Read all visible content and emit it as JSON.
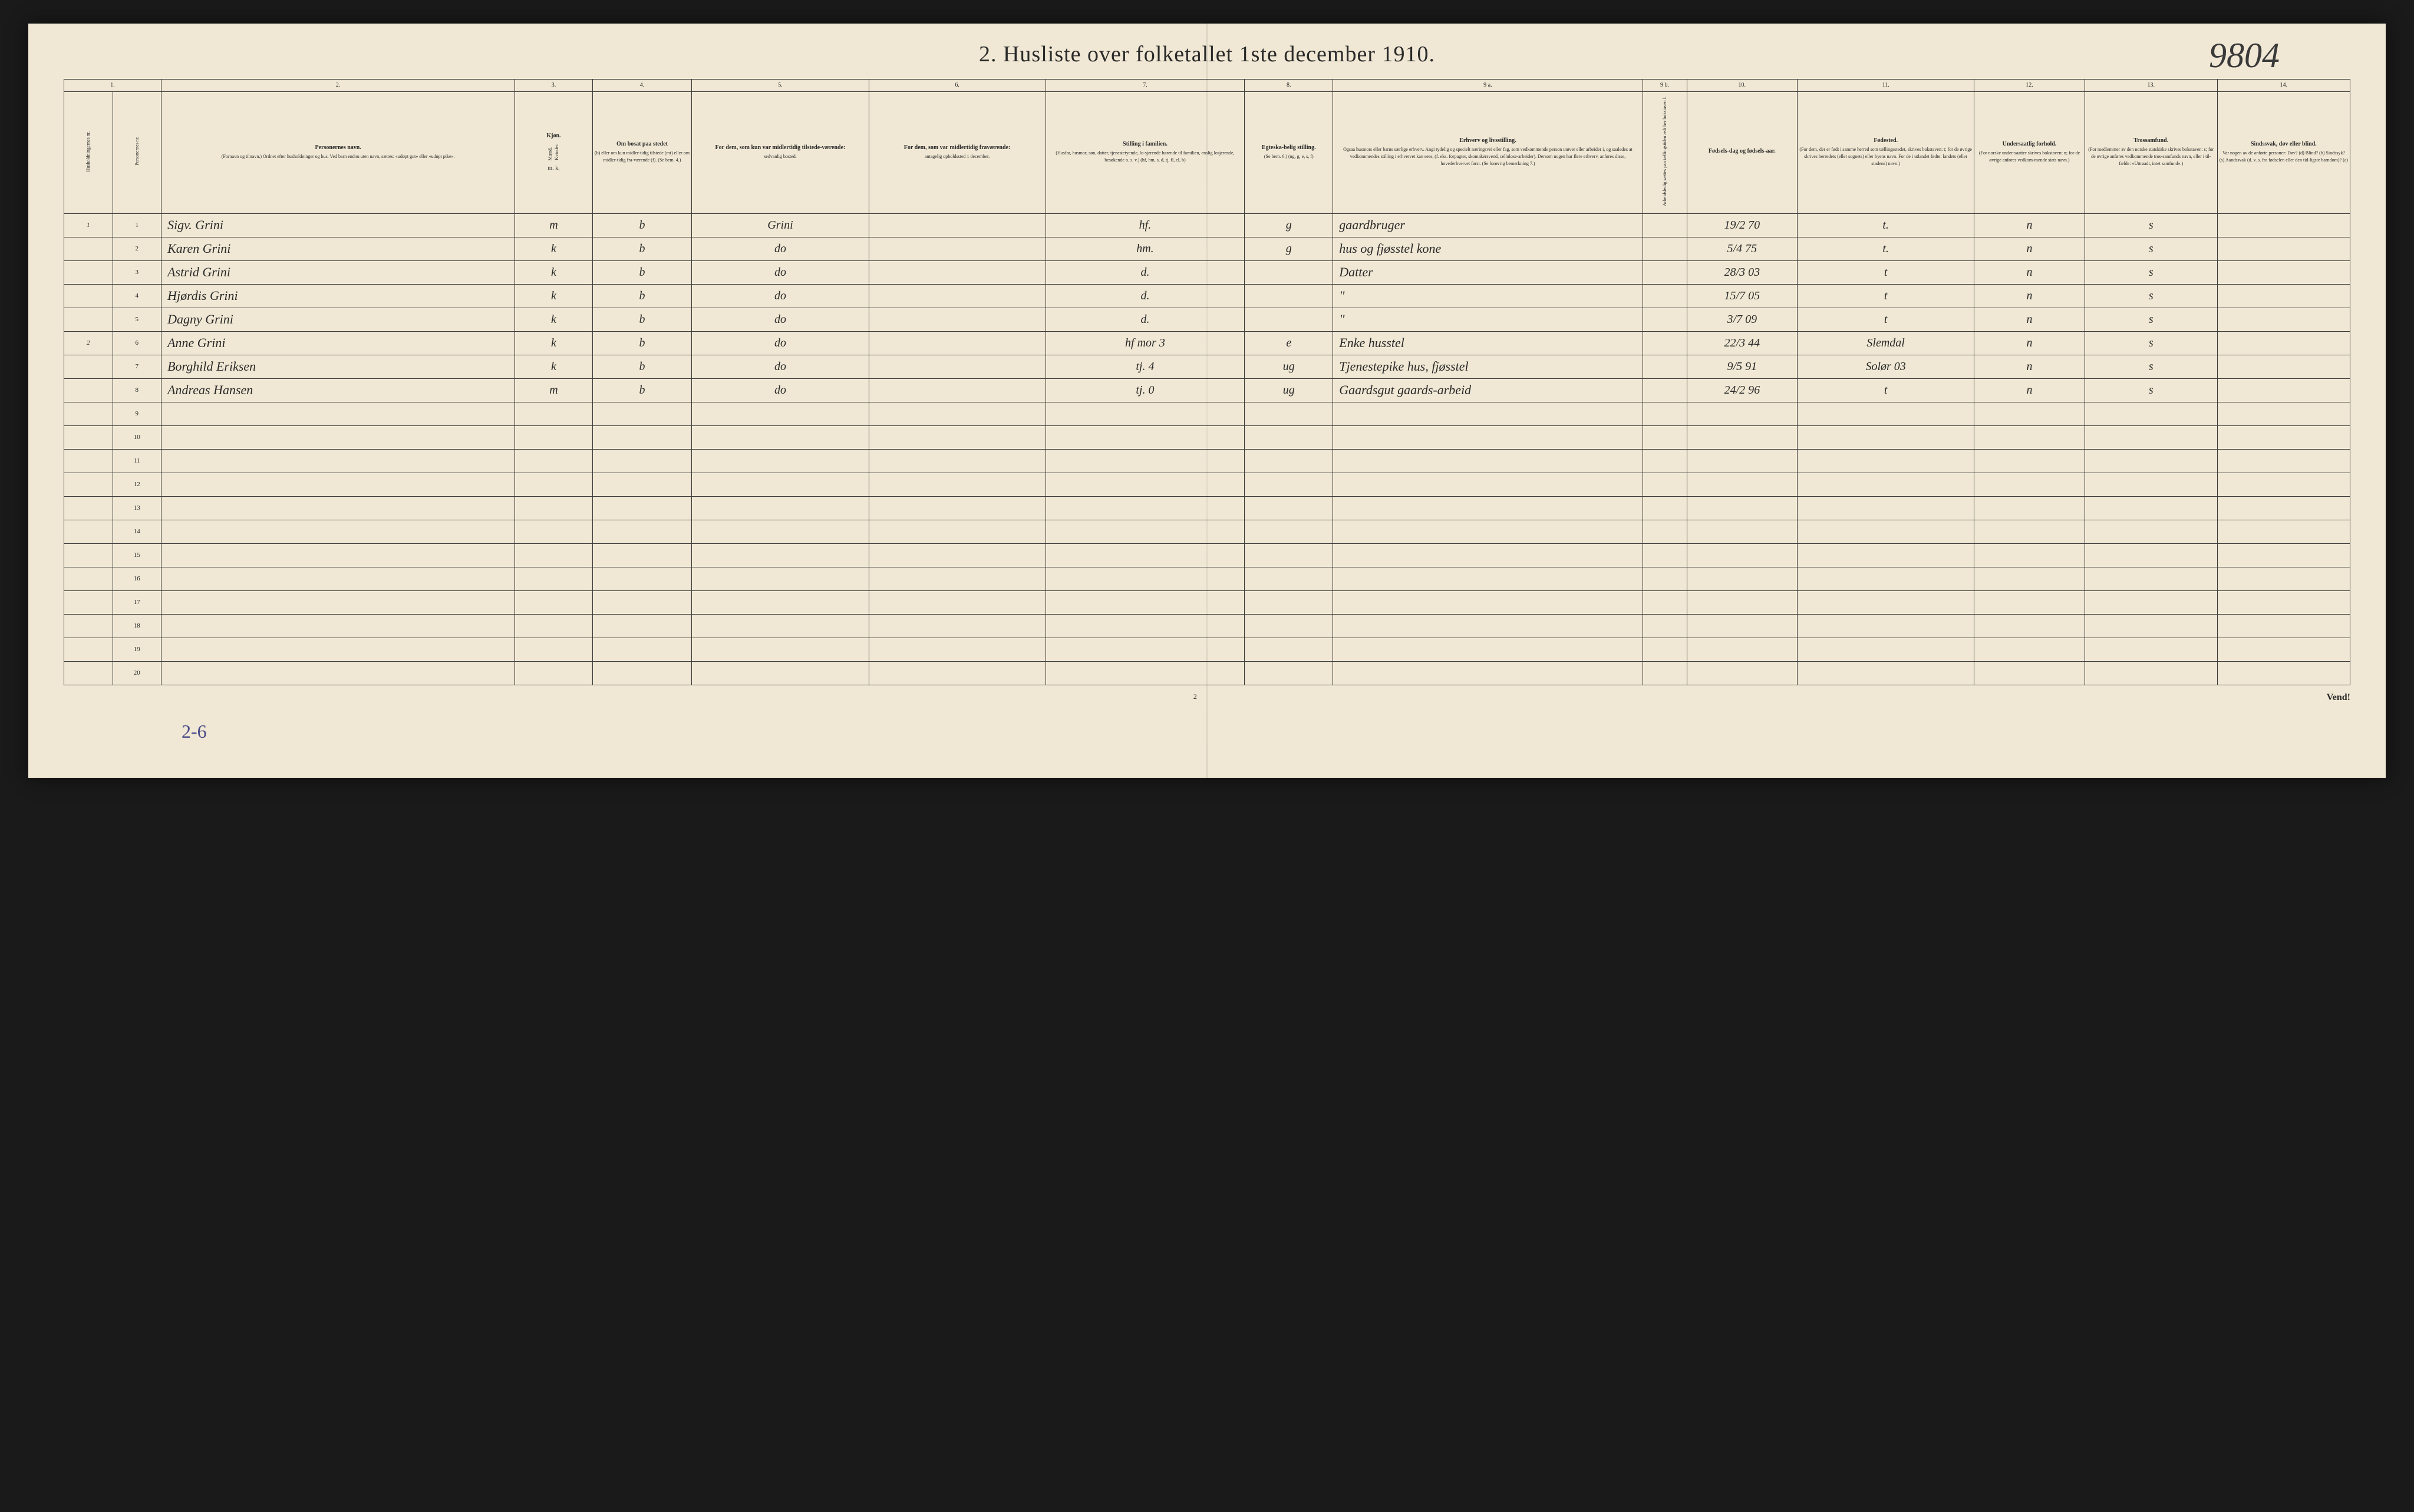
{
  "title": "2.  Husliste over folketallet 1ste december 1910.",
  "top_annotation": "9804",
  "page_number_bottom": "2",
  "footer_right": "Vend!",
  "bottom_annotation": "2-6",
  "column_numbers": [
    "1.",
    "",
    "2.",
    "3.",
    "4.",
    "5.",
    "6.",
    "7.",
    "8.",
    "9 a.",
    "9 b.",
    "10.",
    "11.",
    "12.",
    "13.",
    "14."
  ],
  "headers": {
    "c1": "Husholdningernes nr.",
    "c1b": "Personernes nr.",
    "c2_title": "Personernes navn.",
    "c2_desc": "(Fornavn og tilnavn.)\nOrdnet efter husholdninger og hus.\nVed barn endnu uten navn, sættes: «udøpt gut» eller «udøpt pike».",
    "c3_title": "Kjøn.",
    "c3_m": "Mænd.",
    "c3_k": "Kvinder.",
    "c3_mk": "m.  k.",
    "c4_title": "Om bosat paa stedet",
    "c4_desc": "(b) eller om kun midler-tidig tilstede (mt) eller om midler-tidig fra-værende (f). (Se bem. 4.)",
    "c5_title": "For dem, som kun var midlertidig tilstede-værende:",
    "c5_desc": "sedvanlig bosted.",
    "c6_title": "For dem, som var midlertidig fraværende:",
    "c6_desc": "antagelig opholdssted 1 december.",
    "c7_title": "Stilling i familien.",
    "c7_desc": "(Husfar, husmor, søn, datter, tjenestetyende, lo-sjerende hørende til familien, enslig losjerende, besøkende o. s. v.)\n(hf, hm, s, d, tj, fl, el, b)",
    "c8_title": "Egteska-belig stilling.",
    "c8_desc": "(Se bem. 6.)\n(ug, g, e, s, f)",
    "c9a_title": "Erhverv og livsstilling.",
    "c9a_desc": "Ogsaa husmors eller barns særlige erhverv. Angi tydelig og specielt næringsvei eller fag, som vedkommende person utøver eller arbeider i, og saaledes at vedkommendes stilling i erhvervet kan sees, (f. eks. forpagter, skomakersvend, cellulose-arbeider). Dersom nogen har flere erhverv, anføres disse, hovederhvervet først.\n(Se forøvrig bemerkning 7.)",
    "c9b": "Arbeidsledig sættes paa tællingstiden ædt her bokstaven l.",
    "c10_title": "Fødsels-dag og fødsels-aar.",
    "c11_title": "Fødested.",
    "c11_desc": "(For dem, der er født i samme herred som tællingsstedet, skrives bokstaven: t; for de øvrige skrives herredets (eller sognets) eller byens navn. For de i utlandet fødte: landets (eller stadens) navn.)",
    "c12_title": "Undersaatlig forhold.",
    "c12_desc": "(For norske under-saatter skrives bokstaven: n; for de øvrige anføres vedkom-mende stats navn.)",
    "c13_title": "Trossamfund.",
    "c13_desc": "(For medlemmer av den norske statskirke skrives bokstaven: s; for de øvrige anføres vedkommende tros-samfunds navn, eller i til-fælde: «Uttraadt, intet samfund».)",
    "c14_title": "Sindssvak, døv eller blind.",
    "c14_desc": "Var nogen av de anførte personer:\nDøv?        (d)\nBlind?      (b)\nSindssyk?  (s)\nAandssvak (d. v. s. fra fødselen eller den tid-ligste barndom)? (a)"
  },
  "rows": [
    {
      "hh": "1",
      "n": "1",
      "name": "Sigv. Grini",
      "mk": "m",
      "b": "b",
      "sed": "Grini",
      "opd": "",
      "fam": "hf.",
      "egt": "g",
      "erhv": "gaardbruger",
      "fod": "19/2 70",
      "fst": "t.",
      "und": "n",
      "tro": "s",
      "sind": ""
    },
    {
      "hh": "",
      "n": "2",
      "name": "Karen Grini",
      "mk": "k",
      "b": "b",
      "sed": "do",
      "opd": "",
      "fam": "hm.",
      "egt": "g",
      "erhv": "hus og fjøsstel kone",
      "fod": "5/4 75",
      "fst": "t.",
      "und": "n",
      "tro": "s",
      "sind": ""
    },
    {
      "hh": "",
      "n": "3",
      "name": "Astrid Grini",
      "mk": "k",
      "b": "b",
      "sed": "do",
      "opd": "",
      "fam": "d.",
      "egt": "",
      "erhv": "Datter",
      "fod": "28/3 03",
      "fst": "t",
      "und": "n",
      "tro": "s",
      "sind": ""
    },
    {
      "hh": "",
      "n": "4",
      "name": "Hjørdis Grini",
      "mk": "k",
      "b": "b",
      "sed": "do",
      "opd": "",
      "fam": "d.",
      "egt": "",
      "erhv": "\"",
      "fod": "15/7 05",
      "fst": "t",
      "und": "n",
      "tro": "s",
      "sind": ""
    },
    {
      "hh": "",
      "n": "5",
      "name": "Dagny Grini",
      "mk": "k",
      "b": "b",
      "sed": "do",
      "opd": "",
      "fam": "d.",
      "egt": "",
      "erhv": "\"",
      "fod": "3/7 09",
      "fst": "t",
      "und": "n",
      "tro": "s",
      "sind": ""
    },
    {
      "hh": "2",
      "n": "6",
      "name": "Anne Grini",
      "mk": "k",
      "b": "b",
      "sed": "do",
      "opd": "",
      "fam": "hf mor 3",
      "egt": "e",
      "erhv": "Enke husstel",
      "fod": "22/3 44",
      "fst": "Slemdal",
      "und": "n",
      "tro": "s",
      "sind": ""
    },
    {
      "hh": "",
      "n": "7",
      "name": "Borghild Eriksen",
      "mk": "k",
      "b": "b",
      "sed": "do",
      "opd": "",
      "fam": "tj. 4",
      "egt": "ug",
      "erhv": "Tjenestepike hus, fjøsstel",
      "fod": "9/5 91",
      "fst": "Solør 03",
      "und": "n",
      "tro": "s",
      "sind": ""
    },
    {
      "hh": "",
      "n": "8",
      "name": "Andreas Hansen",
      "mk": "m",
      "b": "b",
      "sed": "do",
      "opd": "",
      "fam": "tj. 0",
      "egt": "ug",
      "erhv": "Gaardsgut gaards-arbeid",
      "fod": "24/2 96",
      "fst": "t",
      "und": "n",
      "tro": "s",
      "sind": ""
    },
    {
      "hh": "",
      "n": "9",
      "name": "",
      "mk": "",
      "b": "",
      "sed": "",
      "opd": "",
      "fam": "",
      "egt": "",
      "erhv": "",
      "fod": "",
      "fst": "",
      "und": "",
      "tro": "",
      "sind": ""
    },
    {
      "hh": "",
      "n": "10",
      "name": "",
      "mk": "",
      "b": "",
      "sed": "",
      "opd": "",
      "fam": "",
      "egt": "",
      "erhv": "",
      "fod": "",
      "fst": "",
      "und": "",
      "tro": "",
      "sind": ""
    },
    {
      "hh": "",
      "n": "11",
      "name": "",
      "mk": "",
      "b": "",
      "sed": "",
      "opd": "",
      "fam": "",
      "egt": "",
      "erhv": "",
      "fod": "",
      "fst": "",
      "und": "",
      "tro": "",
      "sind": ""
    },
    {
      "hh": "",
      "n": "12",
      "name": "",
      "mk": "",
      "b": "",
      "sed": "",
      "opd": "",
      "fam": "",
      "egt": "",
      "erhv": "",
      "fod": "",
      "fst": "",
      "und": "",
      "tro": "",
      "sind": ""
    },
    {
      "hh": "",
      "n": "13",
      "name": "",
      "mk": "",
      "b": "",
      "sed": "",
      "opd": "",
      "fam": "",
      "egt": "",
      "erhv": "",
      "fod": "",
      "fst": "",
      "und": "",
      "tro": "",
      "sind": ""
    },
    {
      "hh": "",
      "n": "14",
      "name": "",
      "mk": "",
      "b": "",
      "sed": "",
      "opd": "",
      "fam": "",
      "egt": "",
      "erhv": "",
      "fod": "",
      "fst": "",
      "und": "",
      "tro": "",
      "sind": ""
    },
    {
      "hh": "",
      "n": "15",
      "name": "",
      "mk": "",
      "b": "",
      "sed": "",
      "opd": "",
      "fam": "",
      "egt": "",
      "erhv": "",
      "fod": "",
      "fst": "",
      "und": "",
      "tro": "",
      "sind": ""
    },
    {
      "hh": "",
      "n": "16",
      "name": "",
      "mk": "",
      "b": "",
      "sed": "",
      "opd": "",
      "fam": "",
      "egt": "",
      "erhv": "",
      "fod": "",
      "fst": "",
      "und": "",
      "tro": "",
      "sind": ""
    },
    {
      "hh": "",
      "n": "17",
      "name": "",
      "mk": "",
      "b": "",
      "sed": "",
      "opd": "",
      "fam": "",
      "egt": "",
      "erhv": "",
      "fod": "",
      "fst": "",
      "und": "",
      "tro": "",
      "sind": ""
    },
    {
      "hh": "",
      "n": "18",
      "name": "",
      "mk": "",
      "b": "",
      "sed": "",
      "opd": "",
      "fam": "",
      "egt": "",
      "erhv": "",
      "fod": "",
      "fst": "",
      "und": "",
      "tro": "",
      "sind": ""
    },
    {
      "hh": "",
      "n": "19",
      "name": "",
      "mk": "",
      "b": "",
      "sed": "",
      "opd": "",
      "fam": "",
      "egt": "",
      "erhv": "",
      "fod": "",
      "fst": "",
      "und": "",
      "tro": "",
      "sind": ""
    },
    {
      "hh": "",
      "n": "20",
      "name": "",
      "mk": "",
      "b": "",
      "sed": "",
      "opd": "",
      "fam": "",
      "egt": "",
      "erhv": "",
      "fod": "",
      "fst": "",
      "und": "",
      "tro": "",
      "sind": ""
    }
  ],
  "col_widths_pct": [
    2.2,
    2.2,
    16,
    3.5,
    4.5,
    8,
    8,
    9,
    4,
    14,
    2,
    5,
    8,
    5,
    6,
    6
  ]
}
